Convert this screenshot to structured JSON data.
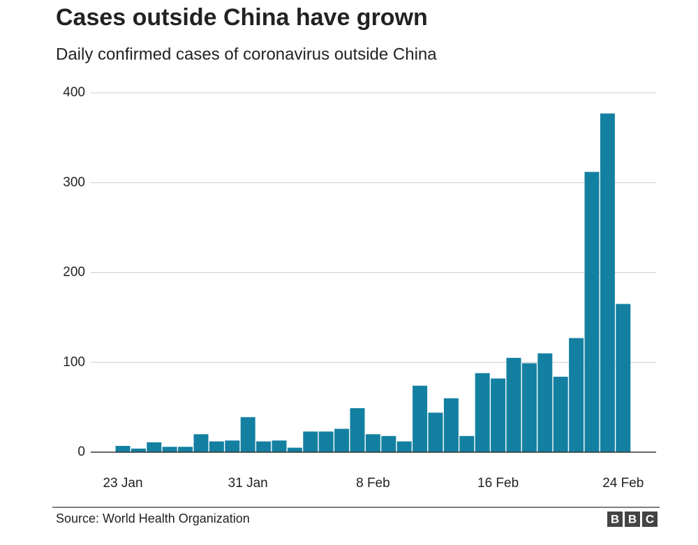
{
  "chart_data": {
    "type": "bar",
    "title": "Cases outside China have grown",
    "subtitle": "Daily confirmed cases of coronavirus outside China",
    "source": "Source: World Health Organization",
    "logo": [
      "B",
      "B",
      "C"
    ],
    "categories": [
      "23 Jan",
      null,
      null,
      null,
      null,
      null,
      null,
      null,
      "31 Jan",
      null,
      null,
      null,
      null,
      null,
      null,
      null,
      "8 Feb",
      null,
      null,
      null,
      null,
      null,
      null,
      null,
      "16 Feb",
      null,
      null,
      null,
      null,
      null,
      null,
      null,
      "24 Feb"
    ],
    "values": [
      7,
      4,
      11,
      6,
      6,
      20,
      12,
      13,
      39,
      12,
      13,
      5,
      23,
      23,
      26,
      49,
      20,
      18,
      12,
      74,
      44,
      60,
      18,
      88,
      82,
      105,
      99,
      110,
      84,
      127,
      312,
      377,
      165
    ],
    "color": "#1380a1",
    "ylim": [
      0,
      400
    ],
    "yticks": [
      0,
      100,
      200,
      300,
      400
    ],
    "grid": true
  }
}
